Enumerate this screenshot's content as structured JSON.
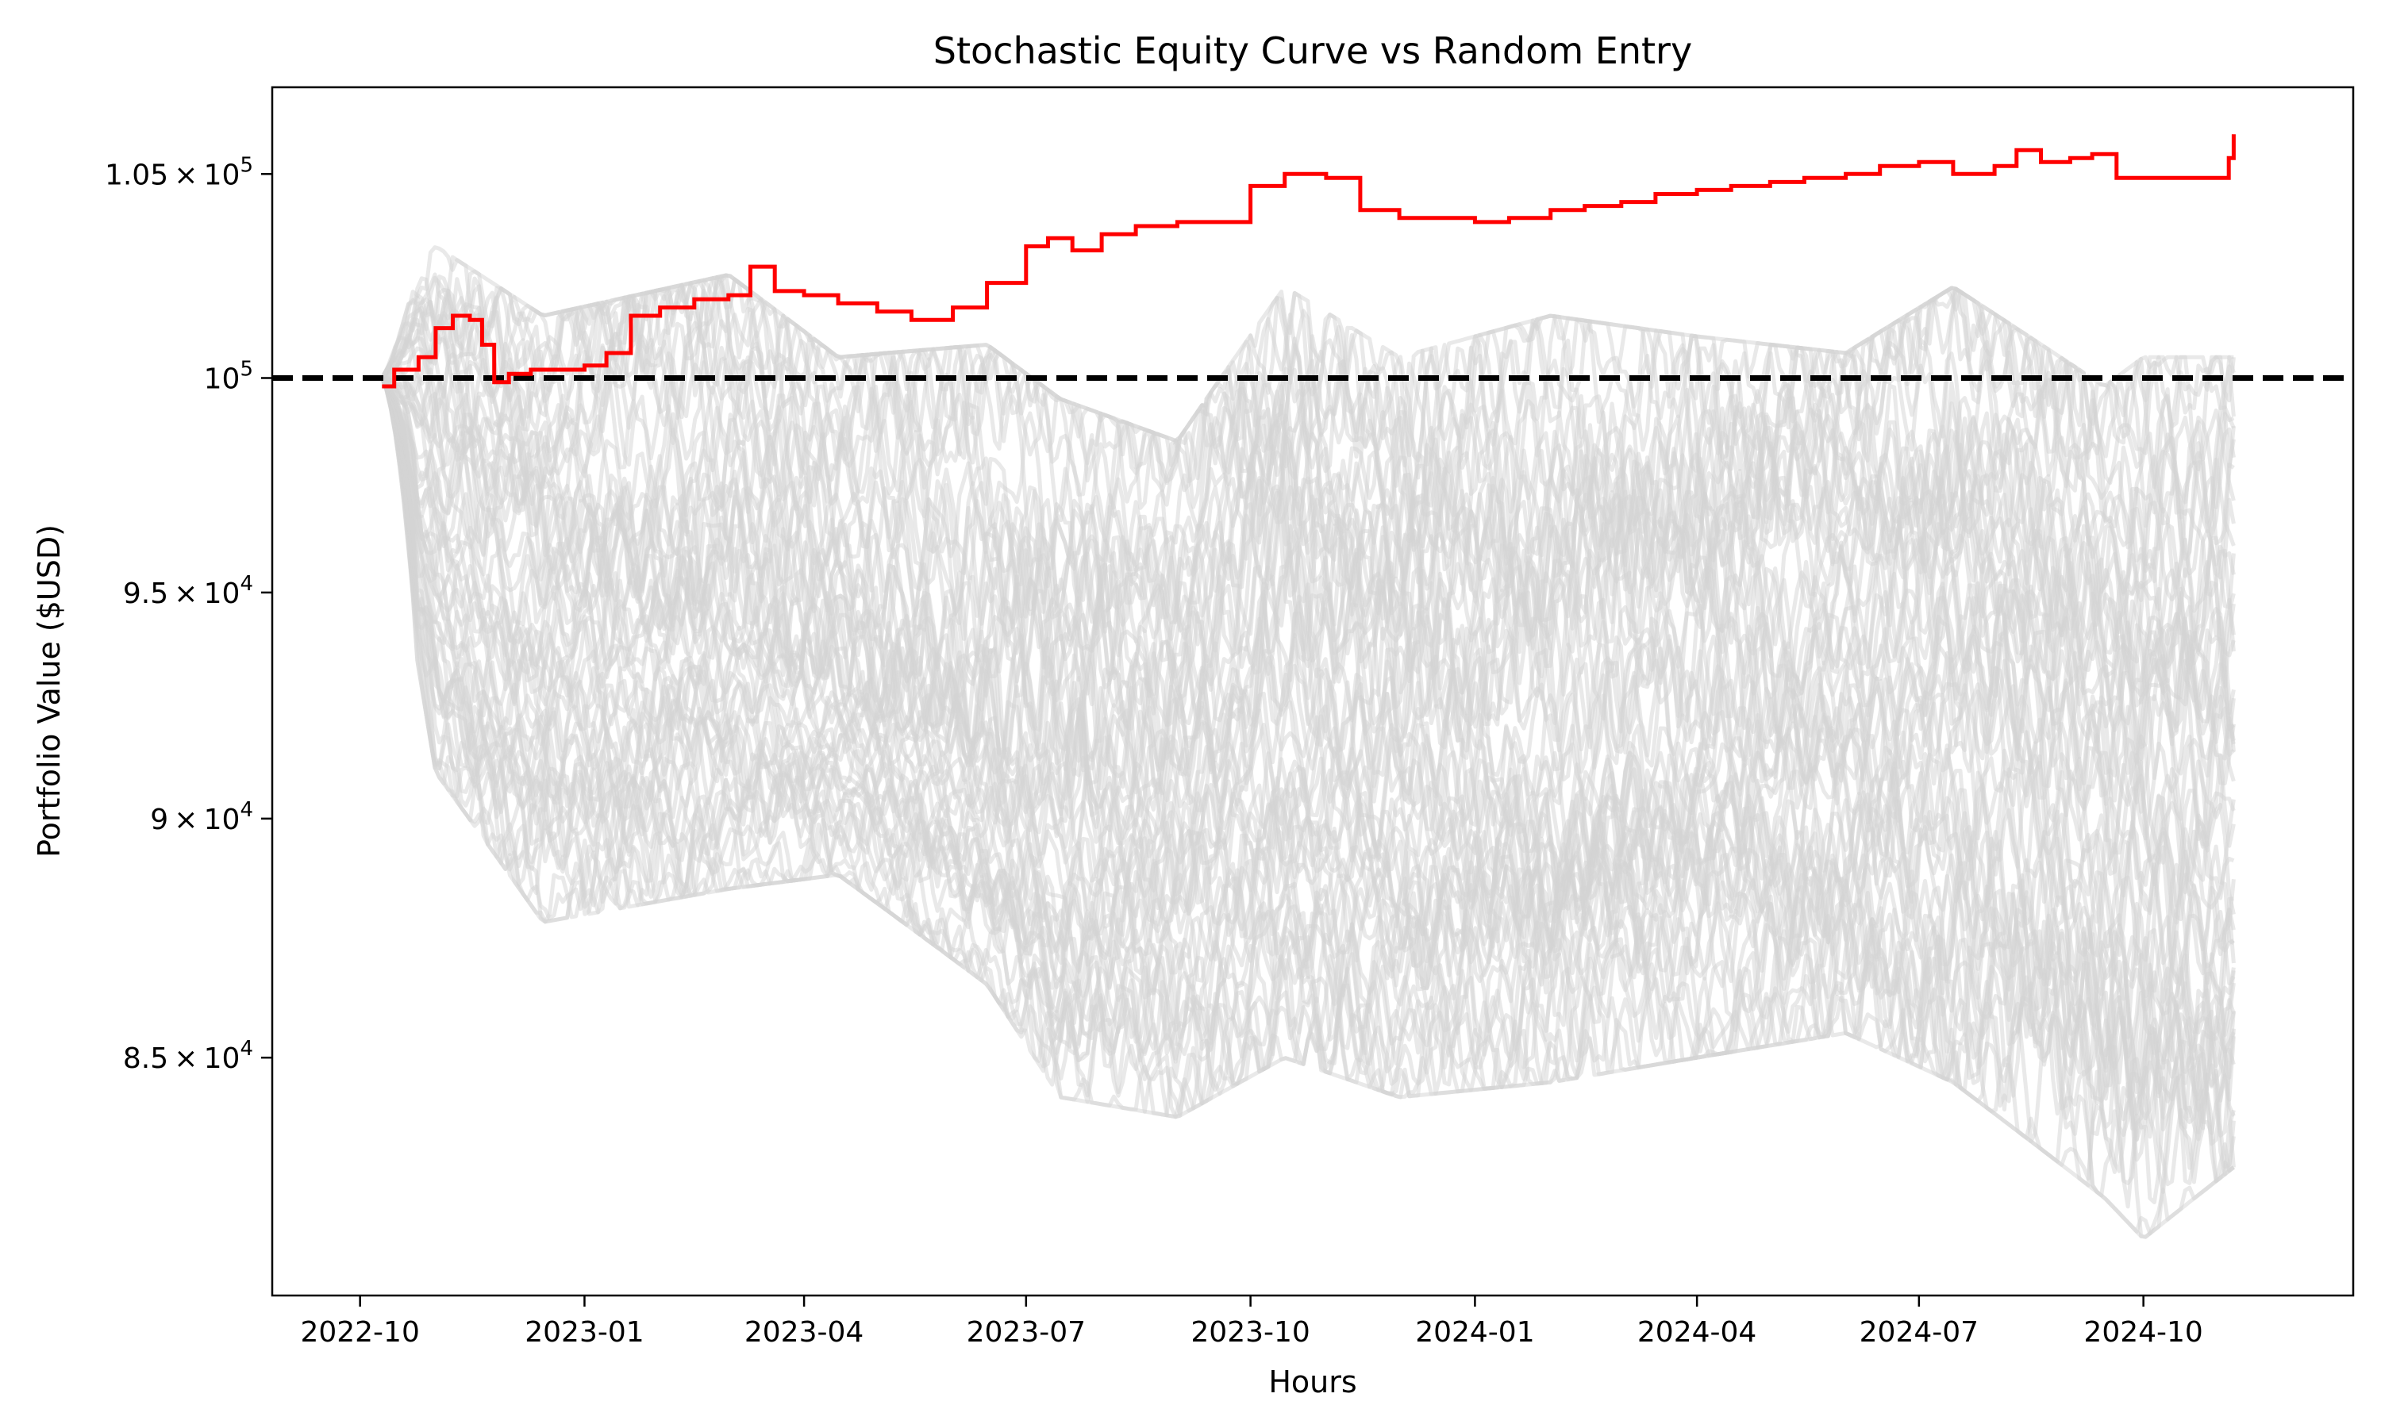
{
  "chart_data": {
    "type": "line",
    "title": "Stochastic Equity Curve vs Random Entry",
    "xlabel": "Hours",
    "ylabel": "Portfolio Value ($USD)",
    "x_axis_type": "date",
    "y_scale": "log",
    "xlim": [
      "2022-08-26",
      "2024-12-26"
    ],
    "ylim": [
      80300,
      107200
    ],
    "x_ticks": [
      {
        "value": "2022-10-01",
        "label": "2022-10"
      },
      {
        "value": "2023-01-01",
        "label": "2023-01"
      },
      {
        "value": "2023-04-01",
        "label": "2023-04"
      },
      {
        "value": "2023-07-01",
        "label": "2023-07"
      },
      {
        "value": "2023-10-01",
        "label": "2023-10"
      },
      {
        "value": "2024-01-01",
        "label": "2024-01"
      },
      {
        "value": "2024-04-01",
        "label": "2024-04"
      },
      {
        "value": "2024-07-01",
        "label": "2024-07"
      },
      {
        "value": "2024-10-01",
        "label": "2024-10"
      }
    ],
    "y_ticks": [
      {
        "value": 85000,
        "mantissa": "8.5",
        "base": "10",
        "exp": "4"
      },
      {
        "value": 90000,
        "mantissa": "9",
        "base": "10",
        "exp": "4"
      },
      {
        "value": 95000,
        "mantissa": "9.5",
        "base": "10",
        "exp": "4"
      },
      {
        "value": 100000,
        "mantissa": "",
        "base": "10",
        "exp": "5"
      },
      {
        "value": 105000,
        "mantissa": "1.05",
        "base": "10",
        "exp": "5"
      }
    ],
    "grid": false,
    "legend": "none",
    "reference_line": {
      "y": 100000,
      "style": "dashed",
      "color": "#000000"
    },
    "strategy_series": {
      "color": "#ff0000",
      "x": [
        "2022-10-10",
        "2022-10-15",
        "2022-10-25",
        "2022-11-01",
        "2022-11-08",
        "2022-11-15",
        "2022-11-20",
        "2022-11-25",
        "2022-12-01",
        "2022-12-10",
        "2022-12-20",
        "2023-01-01",
        "2023-01-10",
        "2023-01-20",
        "2023-02-01",
        "2023-02-15",
        "2023-03-01",
        "2023-03-10",
        "2023-03-20",
        "2023-04-01",
        "2023-04-15",
        "2023-05-01",
        "2023-05-15",
        "2023-06-01",
        "2023-06-15",
        "2023-07-01",
        "2023-07-10",
        "2023-07-20",
        "2023-08-01",
        "2023-08-15",
        "2023-09-01",
        "2023-09-15",
        "2023-10-01",
        "2023-10-15",
        "2023-11-01",
        "2023-11-15",
        "2023-12-01",
        "2023-12-15",
        "2024-01-01",
        "2024-01-15",
        "2024-02-01",
        "2024-02-15",
        "2024-03-01",
        "2024-03-15",
        "2024-04-01",
        "2024-04-15",
        "2024-05-01",
        "2024-05-15",
        "2024-06-01",
        "2024-06-15",
        "2024-07-01",
        "2024-07-15",
        "2024-08-01",
        "2024-08-10",
        "2024-08-20",
        "2024-09-01",
        "2024-09-10",
        "2024-09-20",
        "2024-10-01",
        "2024-10-15",
        "2024-11-01",
        "2024-11-05",
        "2024-11-07"
      ],
      "y": [
        99800,
        100200,
        100500,
        101200,
        101500,
        101400,
        100800,
        99900,
        100100,
        100200,
        100200,
        100300,
        100600,
        101500,
        101700,
        101900,
        102000,
        102700,
        102100,
        102000,
        101800,
        101600,
        101400,
        101700,
        102300,
        103200,
        103400,
        103100,
        103500,
        103700,
        103800,
        103800,
        104700,
        105000,
        104900,
        104100,
        103900,
        103900,
        103800,
        103900,
        104100,
        104200,
        104300,
        104500,
        104600,
        104700,
        104800,
        104900,
        105000,
        105200,
        105300,
        105000,
        105200,
        105600,
        105300,
        105400,
        105500,
        104900,
        104900,
        104900,
        104900,
        105400,
        106000
      ]
    },
    "random_entry_series": {
      "color": "#d3d3d3",
      "count": 60,
      "envelope": {
        "x": [
          "2022-10-10",
          "2022-11-01",
          "2022-12-15",
          "2023-03-01",
          "2023-04-15",
          "2023-06-15",
          "2023-07-15",
          "2023-09-01",
          "2023-10-15",
          "2023-12-01",
          "2024-02-01",
          "2024-04-01",
          "2024-06-01",
          "2024-07-15",
          "2024-09-15",
          "2024-10-01",
          "2024-11-07"
        ],
        "upper": [
          101600,
          103200,
          101500,
          102500,
          100500,
          100800,
          99500,
          98500,
          102200,
          100500,
          101500,
          101000,
          100600,
          102200,
          99800,
          100500,
          100500
        ],
        "center": [
          99500,
          96500,
          94500,
          94200,
          93000,
          91700,
          90500,
          90500,
          92500,
          91000,
          91600,
          92000,
          92500,
          93500,
          91000,
          90800,
          91000
        ],
        "lower": [
          98200,
          91000,
          87800,
          88500,
          88800,
          86500,
          84200,
          83800,
          85000,
          84200,
          84500,
          85000,
          85500,
          84500,
          82200,
          81400,
          82800
        ]
      }
    }
  }
}
